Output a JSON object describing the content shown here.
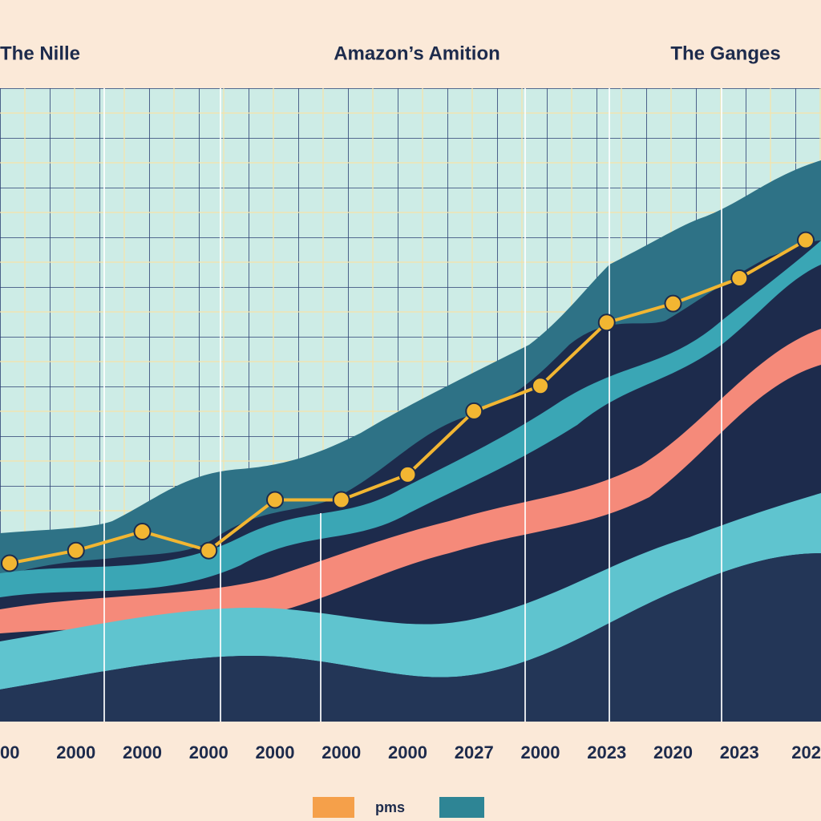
{
  "chart_data": {
    "type": "line",
    "annotations": [
      "The Nille",
      "Amazon’s Amition",
      "The Ganges"
    ],
    "categories": [
      "00",
      "2000",
      "2000",
      "2000",
      "2000",
      "2000",
      "2000",
      "2027",
      "2000",
      "2023",
      "2020",
      "2023",
      "202"
    ],
    "series": [
      {
        "name": "pms",
        "color": "#f2b632",
        "values": [
          25,
          27,
          30,
          27,
          35,
          35,
          39,
          49,
          53,
          63,
          66,
          70,
          76
        ]
      }
    ],
    "legend_color": "#f5a04a",
    "ylim": [
      0,
      100
    ],
    "grid": true
  }
}
